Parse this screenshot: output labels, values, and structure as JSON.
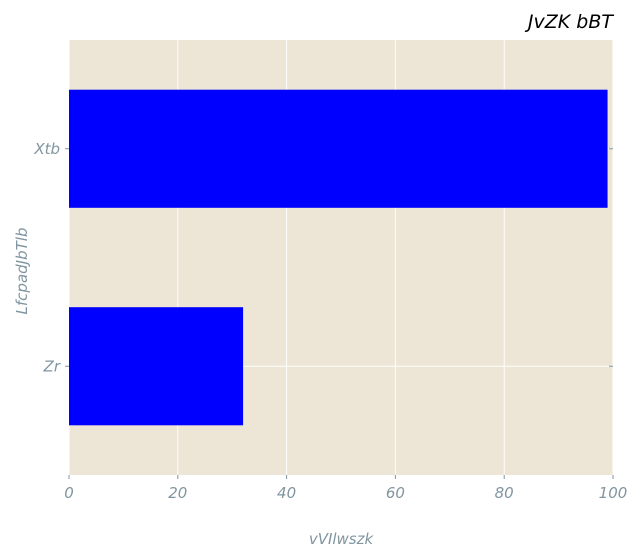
{
  "chart_data": {
    "type": "bar",
    "orientation": "horizontal",
    "title": "JvZK   bBT",
    "xlabel": "vVIlwszk",
    "ylabel": "LfcpadJbTlb",
    "categories": [
      "Zr",
      "Xtb"
    ],
    "values": [
      32,
      99
    ],
    "xlim": [
      0,
      100
    ],
    "xticks": [
      0,
      20,
      40,
      60,
      80,
      100
    ],
    "grid": true,
    "bar_color": "#0000ff",
    "background_color": "#ede5d6",
    "grid_color": "#ffffff"
  }
}
